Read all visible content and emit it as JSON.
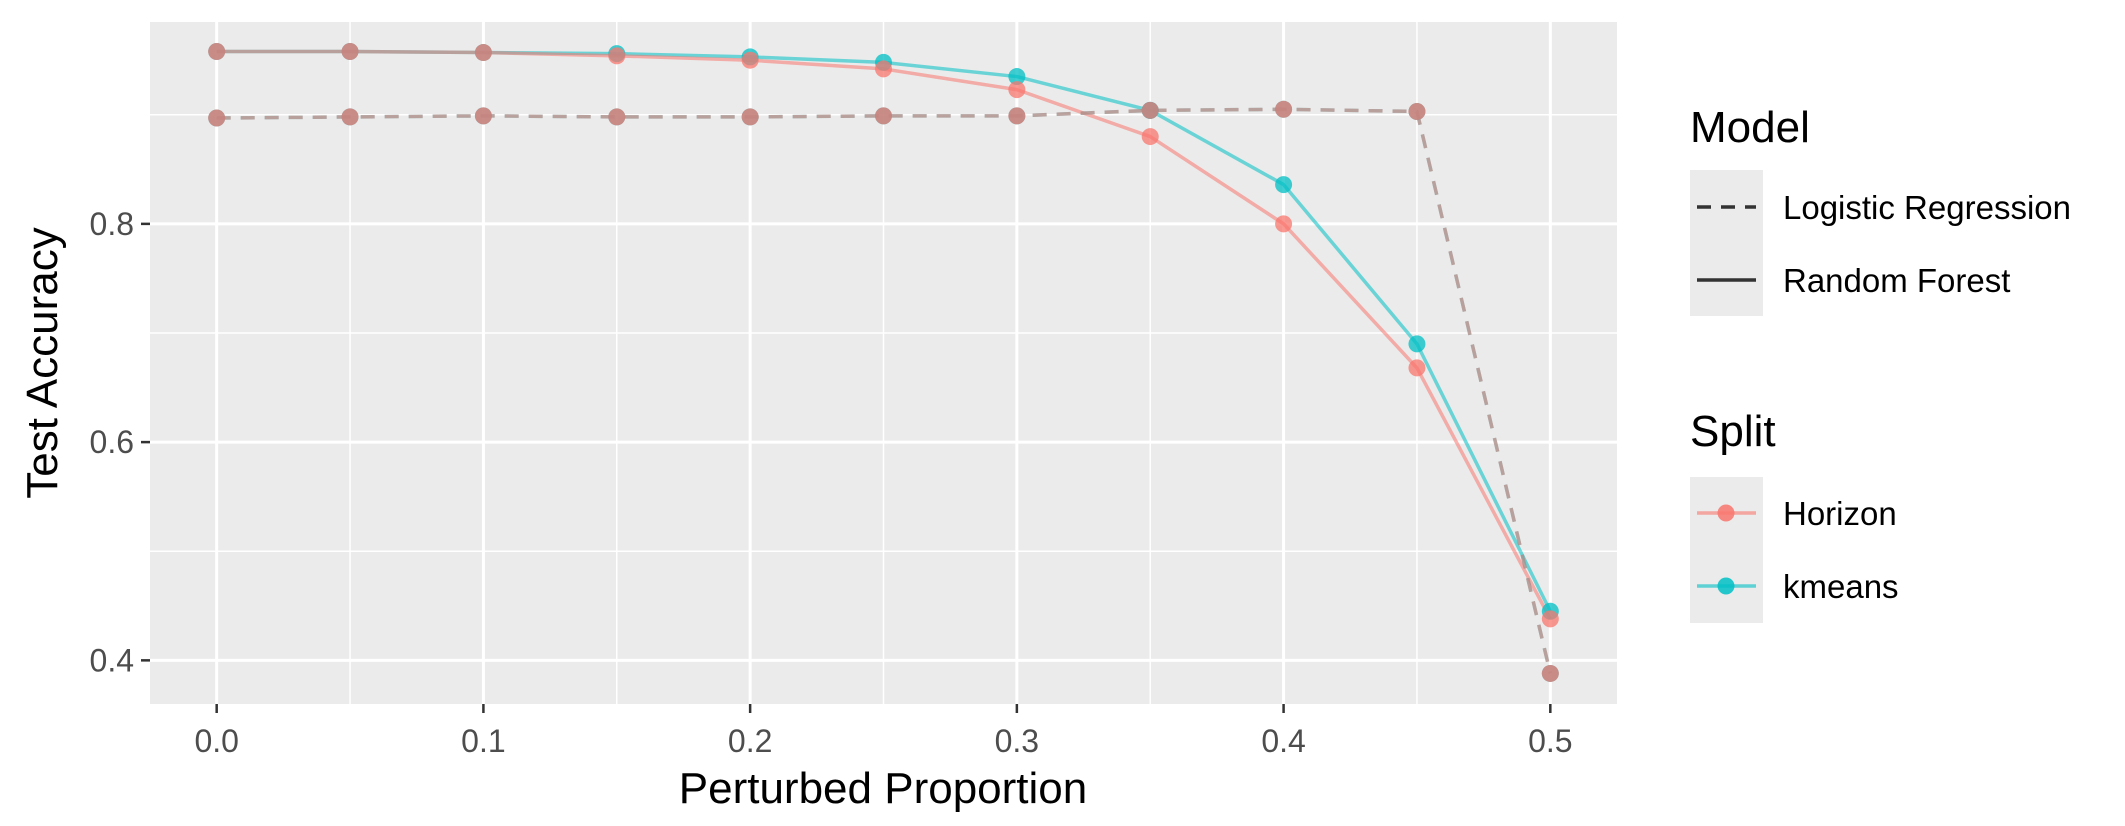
{
  "chart_data": {
    "type": "line",
    "xlabel": "Perturbed Proportion",
    "ylabel": "Test Accuracy",
    "xlim": [
      -0.025,
      0.525
    ],
    "ylim": [
      0.36,
      0.985
    ],
    "x_ticks": [
      0.0,
      0.1,
      0.2,
      0.3,
      0.4,
      0.5
    ],
    "x_tick_labels": [
      "0.0",
      "0.1",
      "0.2",
      "0.3",
      "0.4",
      "0.5"
    ],
    "y_ticks": [
      0.4,
      0.6,
      0.8
    ],
    "y_tick_labels": [
      "0.4",
      "0.6",
      "0.8"
    ],
    "grid": true,
    "background": "#ebebeb",
    "x": [
      0.0,
      0.05,
      0.1,
      0.15,
      0.2,
      0.25,
      0.3,
      0.35,
      0.4,
      0.45,
      0.5
    ],
    "series": [
      {
        "model": "Random Forest",
        "split": "kmeans",
        "linetype": "solid",
        "color": "#00bfc4",
        "values": [
          0.958,
          0.958,
          0.957,
          0.956,
          0.953,
          0.948,
          0.935,
          0.904,
          0.836,
          0.69,
          0.445
        ]
      },
      {
        "model": "Random Forest",
        "split": "Horizon",
        "linetype": "solid",
        "color": "#f8766d",
        "values": [
          0.958,
          0.958,
          0.957,
          0.954,
          0.95,
          0.942,
          0.923,
          0.88,
          0.8,
          0.668,
          0.438
        ]
      },
      {
        "model": "Logistic Regression",
        "split": "kmeans",
        "linetype": "dashed",
        "color": "#00bfc4",
        "values": [
          0.897,
          0.898,
          0.899,
          0.898,
          0.898,
          0.899,
          0.899,
          0.904,
          0.905,
          0.903,
          0.388
        ]
      },
      {
        "model": "Logistic Regression",
        "split": "Horizon",
        "linetype": "dashed",
        "color": "#f8766d",
        "values": [
          0.897,
          0.898,
          0.899,
          0.898,
          0.898,
          0.899,
          0.899,
          0.904,
          0.905,
          0.903,
          0.388
        ]
      }
    ],
    "legend": {
      "placement": "right",
      "model": {
        "title": "Model",
        "items": [
          {
            "label": "Logistic Regression",
            "linetype": "dashed"
          },
          {
            "label": "Random Forest",
            "linetype": "solid"
          }
        ]
      },
      "split": {
        "title": "Split",
        "items": [
          {
            "label": "Horizon",
            "color": "#f8766d"
          },
          {
            "label": "kmeans",
            "color": "#00bfc4"
          }
        ]
      }
    }
  }
}
